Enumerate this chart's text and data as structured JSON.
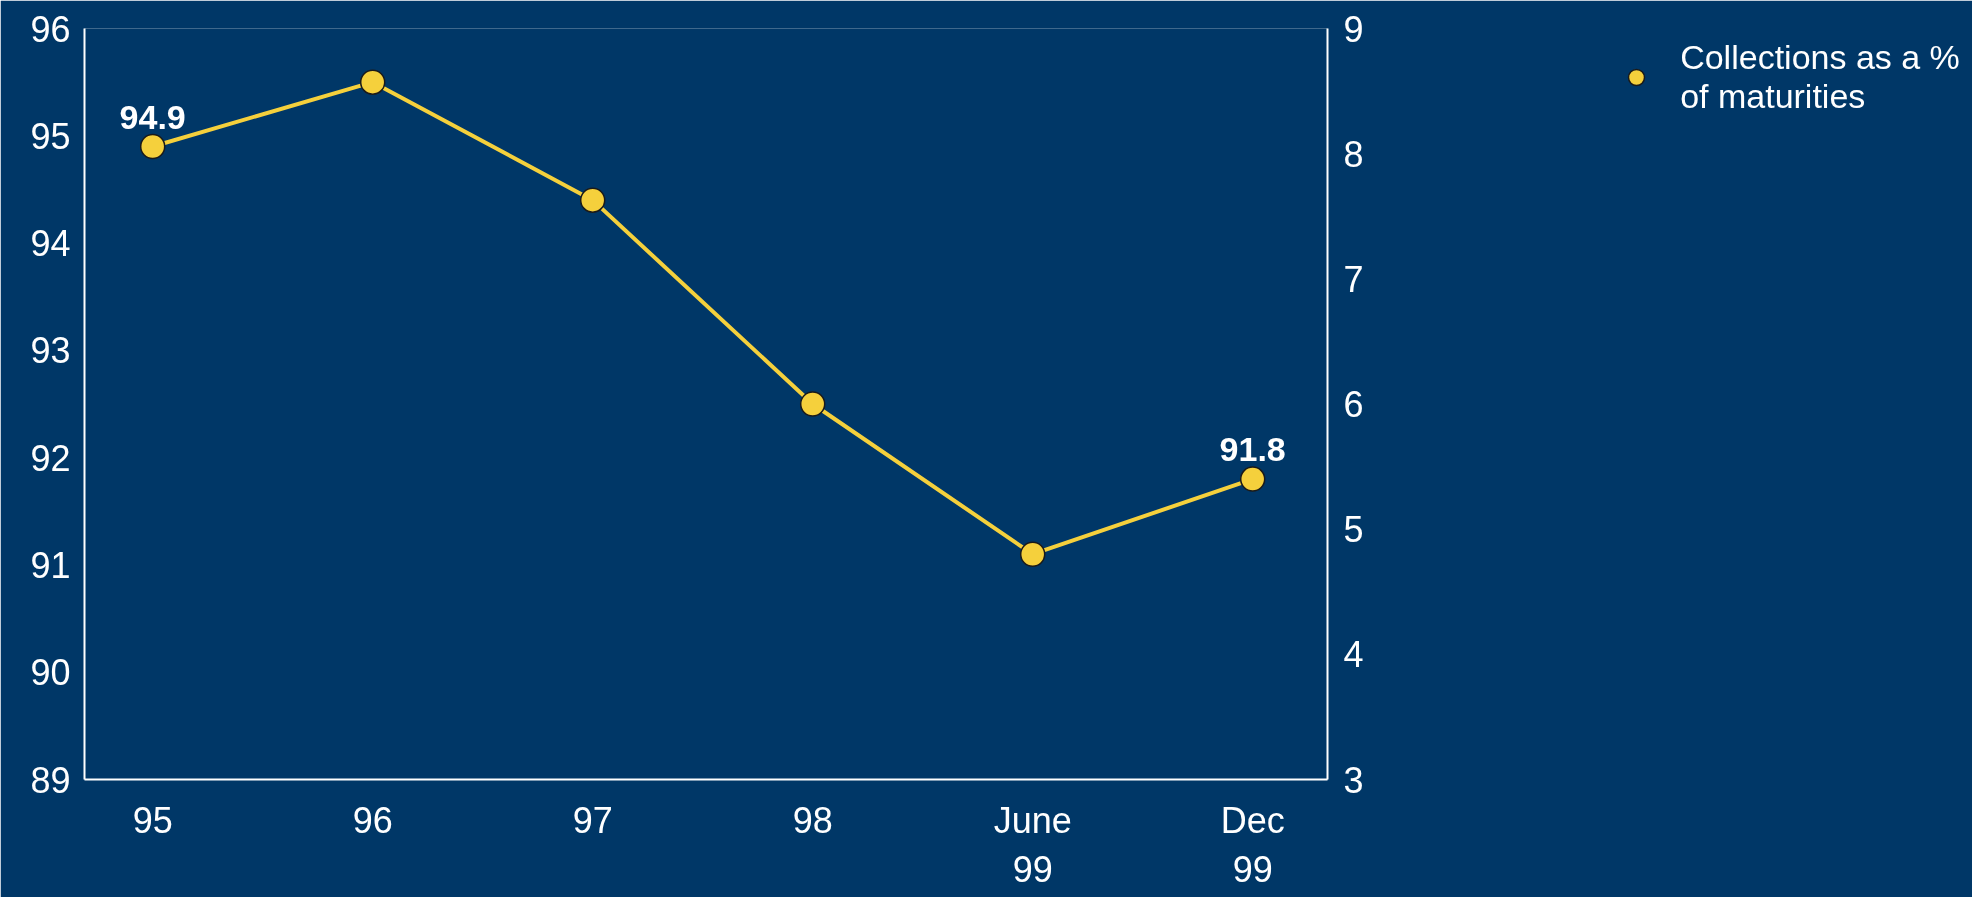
{
  "chart_data": {
    "type": "line",
    "categories": [
      "95",
      "96",
      "97",
      "98",
      "June 99",
      "Dec 99"
    ],
    "series": [
      {
        "name": "Collections as a % of maturities",
        "color": "#f5d03c",
        "values": [
          94.9,
          95.5,
          94.4,
          92.5,
          91.1,
          91.8
        ],
        "value_labels": [
          "94.9",
          null,
          null,
          null,
          null,
          "91.8"
        ]
      }
    ],
    "ylim": [
      89,
      96
    ],
    "yticks": [
      89,
      90,
      91,
      92,
      93,
      94,
      95,
      96
    ],
    "y2lim": [
      3,
      9
    ],
    "y2ticks": [
      3,
      4,
      5,
      6,
      7,
      8,
      9
    ],
    "marker": "circle",
    "line_style": "solid",
    "grid": false,
    "legend": "right"
  }
}
